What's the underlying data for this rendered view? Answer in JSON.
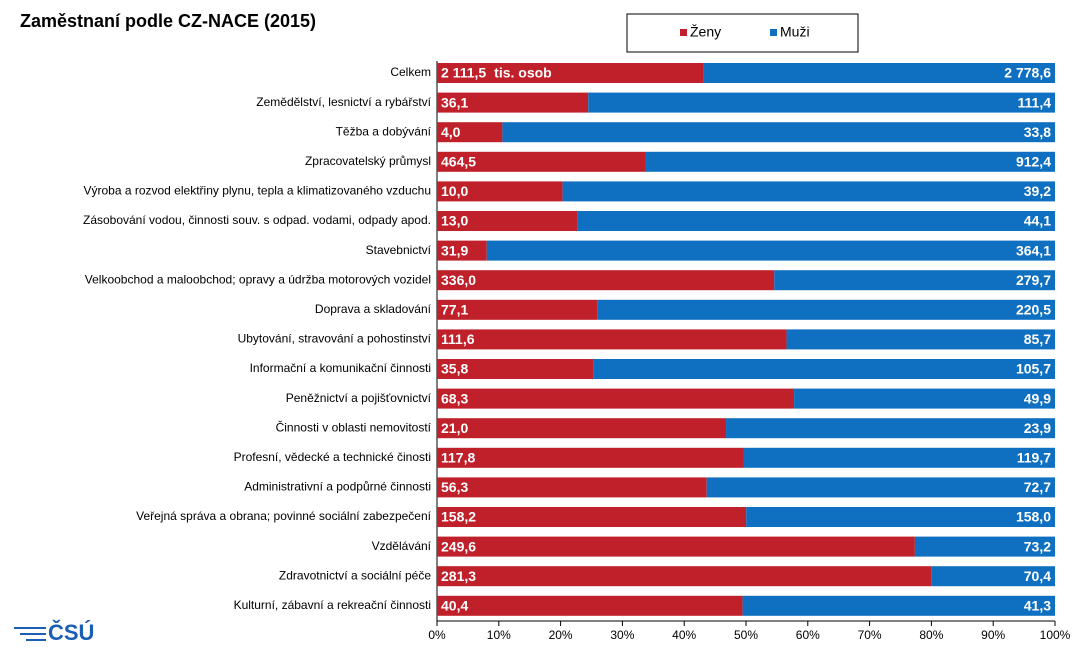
{
  "chart_data": {
    "type": "bar",
    "orientation": "horizontal",
    "stacked": "percent",
    "title": "Zaměstnaní podle CZ-NACE (2015)",
    "annotation": "tis. osob",
    "logo": "ČSÚ",
    "categories": [
      "Celkem",
      "Zemědělství, lesnictví a rybářství",
      "Těžba a dobývání",
      "Zpracovatelský průmysl",
      "Výroba a rozvod elektřiny plynu, tepla a klimatizovaného vzduchu",
      "Zásobování vodou, činnosti souv. s  odpad. vodami, odpady apod.",
      "Stavebnictví",
      "Velkoobchod a maloobchod; opravy a údržba motorových vozidel",
      "Doprava a skladování",
      "Ubytování, stravování a pohostinství",
      "Informační a komunikační činnosti",
      "Peněžnictví a pojišťovnictví",
      "Činnosti v oblasti nemovitostí",
      "Profesní, vědecké a technické činosti",
      "Administrativní a podpůrné činnosti",
      "Veřejná správa a obrana; povinné sociální zabezpečení",
      "Vzdělávání",
      "Zdravotnictví a sociální péče",
      "Kulturní, zábavní a rekreační činnosti"
    ],
    "series": [
      {
        "name": "Ženy",
        "color": "#c0202a",
        "values": [
          2111.5,
          36.1,
          4.0,
          464.5,
          10.0,
          13.0,
          31.9,
          336.0,
          77.1,
          111.6,
          35.8,
          68.3,
          21.0,
          117.8,
          56.3,
          158.2,
          249.6,
          281.3,
          40.4
        ],
        "value_labels": [
          "2 111,5",
          "36,1",
          "4,0",
          "464,5",
          "10,0",
          "13,0",
          "31,9",
          "336,0",
          "77,1",
          "111,6",
          "35,8",
          "68,3",
          "21,0",
          "117,8",
          "56,3",
          "158,2",
          "249,6",
          "281,3",
          "40,4"
        ]
      },
      {
        "name": "Muži",
        "color": "#0f6fc0",
        "values": [
          2778.6,
          111.4,
          33.8,
          912.4,
          39.2,
          44.1,
          364.1,
          279.7,
          220.5,
          85.7,
          105.7,
          49.9,
          23.9,
          119.7,
          72.7,
          158.0,
          73.2,
          70.4,
          41.3
        ],
        "value_labels": [
          "2 778,6",
          "111,4",
          "33,8",
          "912,4",
          "39,2",
          "44,1",
          "364,1",
          "279,7",
          "220,5",
          "85,7",
          "105,7",
          "49,9",
          "23,9",
          "119,7",
          "72,7",
          "158,0",
          "73,2",
          "70,4",
          "41,3"
        ]
      }
    ],
    "xlim": [
      0,
      100
    ],
    "xticks": [
      {
        "value": 0,
        "label": "0%"
      },
      {
        "value": 10,
        "label": "10%"
      },
      {
        "value": 20,
        "label": "20%"
      },
      {
        "value": 30,
        "label": "30%"
      },
      {
        "value": 40,
        "label": "40%"
      },
      {
        "value": 50,
        "label": "50%"
      },
      {
        "value": 60,
        "label": "60%"
      },
      {
        "value": 70,
        "label": "70%"
      },
      {
        "value": 80,
        "label": "80%"
      },
      {
        "value": 90,
        "label": "90%"
      },
      {
        "value": 100,
        "label": "100%"
      }
    ],
    "legend": "top"
  }
}
